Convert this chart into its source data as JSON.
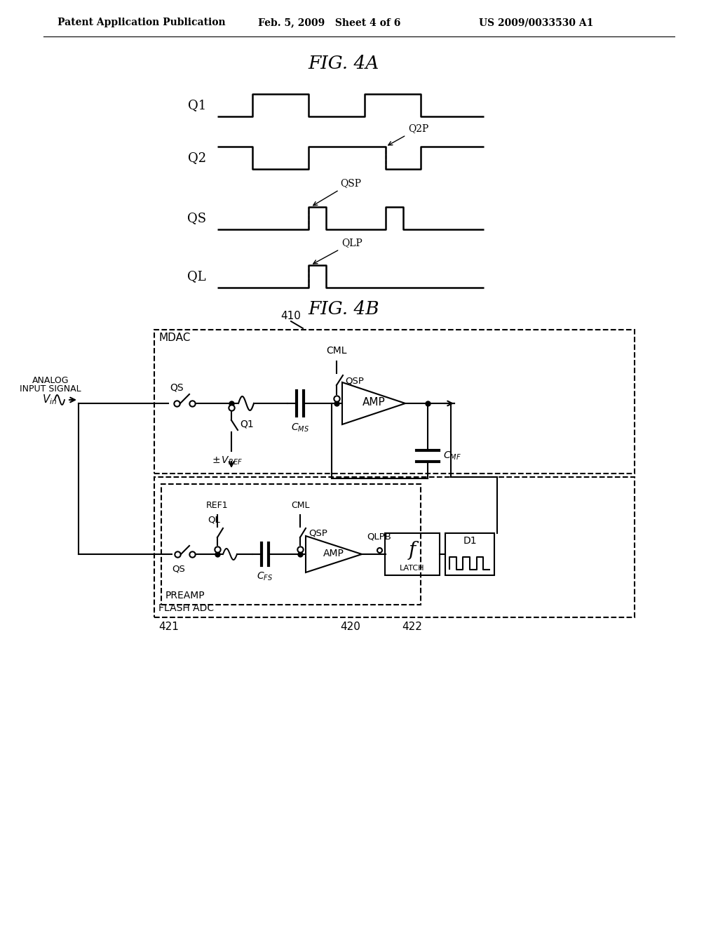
{
  "bg_color": "#ffffff",
  "lc": "#000000",
  "header_left": "Patent Application Publication",
  "header_mid": "Feb. 5, 2009   Sheet 4 of 6",
  "header_right": "US 2009/0033530 A1",
  "fig4a_title": "FIG. 4A",
  "fig4b_title": "FIG. 4B",
  "label_410": "410",
  "label_420": "420",
  "label_421": "421",
  "label_422": "422"
}
